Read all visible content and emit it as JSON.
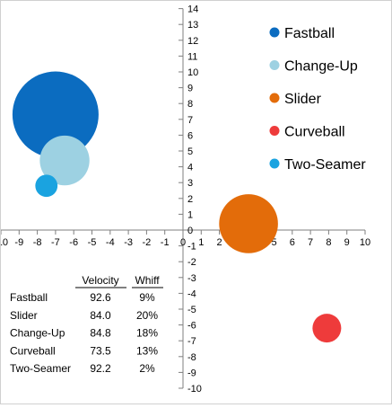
{
  "chart_data": {
    "type": "bubble",
    "title": "",
    "xlabel": "",
    "ylabel": "",
    "xlim": [
      -10,
      10
    ],
    "ylim": [
      -10,
      14
    ],
    "x_ticks": [
      -10,
      -9,
      -8,
      -7,
      -6,
      -5,
      -4,
      -3,
      -2,
      -1,
      0,
      1,
      2,
      3,
      4,
      5,
      6,
      7,
      8,
      9,
      10
    ],
    "y_ticks": [
      -10,
      -9,
      -8,
      -7,
      -6,
      -5,
      -4,
      -3,
      -2,
      -1,
      0,
      1,
      2,
      3,
      4,
      5,
      6,
      7,
      8,
      9,
      10,
      11,
      12,
      13,
      14
    ],
    "grid": false,
    "legend_position": "top-right",
    "series": [
      {
        "name": "Fastball",
        "x": -7.0,
        "y": 7.3,
        "size": 9.0,
        "color": "#0b6cc0"
      },
      {
        "name": "Change-Up",
        "x": -6.5,
        "y": 4.4,
        "size": 3.0,
        "color": "#9dd1e2"
      },
      {
        "name": "Slider",
        "x": 3.6,
        "y": 0.4,
        "size": 4.2,
        "color": "#e36c0a"
      },
      {
        "name": "Curveball",
        "x": 7.9,
        "y": -6.2,
        "size": 1.0,
        "color": "#ee3b3b"
      },
      {
        "name": "Two-Seamer",
        "x": -7.5,
        "y": 2.8,
        "size": 0.6,
        "color": "#1aa3e0"
      }
    ]
  },
  "stats_table": {
    "headers": [
      "",
      "Velocity",
      "Whiff"
    ],
    "rows": [
      [
        "Fastball",
        "92.6",
        "9%"
      ],
      [
        "Slider",
        "84.0",
        "20%"
      ],
      [
        "Change-Up",
        "84.8",
        "18%"
      ],
      [
        "Curveball",
        "73.5",
        "13%"
      ],
      [
        "Two-Seamer",
        "92.2",
        "2%"
      ]
    ]
  }
}
